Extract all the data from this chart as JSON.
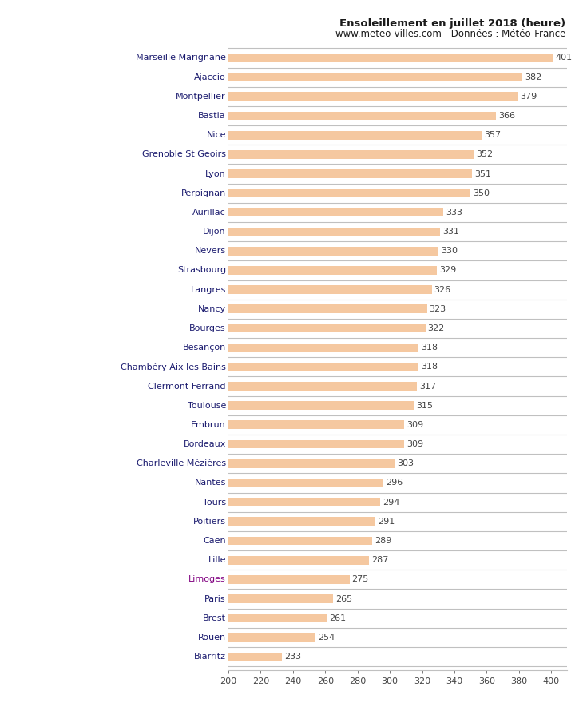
{
  "title_line1": "Ensoleillement en juillet 2018 (heure)",
  "title_line2": "www.meteo-villes.com - Données : Météo-France",
  "cities": [
    "Marseille Marignane",
    "Ajaccio",
    "Montpellier",
    "Bastia",
    "Nice",
    "Grenoble St Geoirs",
    "Lyon",
    "Perpignan",
    "Aurillac",
    "Dijon",
    "Nevers",
    "Strasbourg",
    "Langres",
    "Nancy",
    "Bourges",
    "Besançon",
    "Chambéry Aix les Bains",
    "Clermont Ferrand",
    "Toulouse",
    "Embrun",
    "Bordeaux",
    "Charleville Mézières",
    "Nantes",
    "Tours",
    "Poitiers",
    "Caen",
    "Lille",
    "Limoges",
    "Paris",
    "Brest",
    "Rouen",
    "Biarritz"
  ],
  "values": [
    401,
    382,
    379,
    366,
    357,
    352,
    351,
    350,
    333,
    331,
    330,
    329,
    326,
    323,
    322,
    318,
    318,
    317,
    315,
    309,
    309,
    303,
    296,
    294,
    291,
    289,
    287,
    275,
    265,
    261,
    254,
    233
  ],
  "label_colors": {
    "Marseille Marignane": "#1a1a6e",
    "Limoges": "#800080",
    "default": "#1a1a6e"
  },
  "bar_color": "#f5c8a0",
  "bar_edge_color": "#c8a882",
  "separator_color": "#c0c0c0",
  "background_color": "#ffffff",
  "xlim_min": 200,
  "xlim_max": 410,
  "xticks": [
    200,
    220,
    240,
    260,
    280,
    300,
    320,
    340,
    360,
    380,
    400
  ],
  "title_fontsize": 9.5,
  "subtitle_fontsize": 8.5,
  "label_fontsize": 8,
  "value_fontsize": 8,
  "tick_fontsize": 8
}
